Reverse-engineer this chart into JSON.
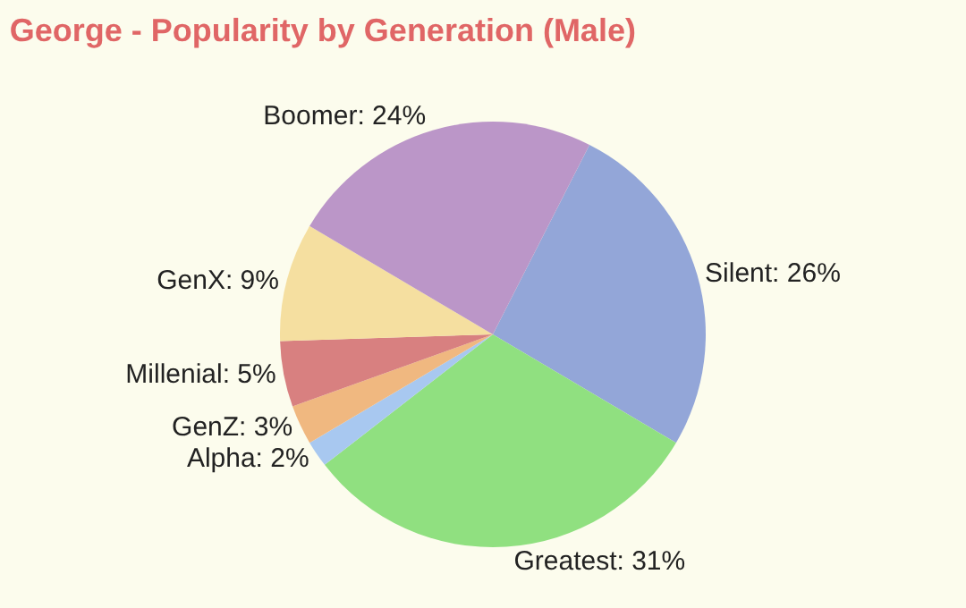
{
  "chart_data": {
    "type": "pie",
    "title": "George - Popularity by Generation (Male)",
    "categories": [
      "Silent",
      "Greatest",
      "Alpha",
      "GenZ",
      "Millenial",
      "GenX",
      "Boomer"
    ],
    "values": [
      26,
      31,
      2,
      3,
      5,
      9,
      24
    ],
    "value_labels": [
      "26%",
      "31%",
      "2%",
      "3%",
      "5%",
      "9%",
      "24%"
    ],
    "colors": [
      "#93a6d8",
      "#90e080",
      "#a8c8f0",
      "#f0b880",
      "#d88080",
      "#f5dfa0",
      "#bb96c8"
    ],
    "legend": false
  }
}
